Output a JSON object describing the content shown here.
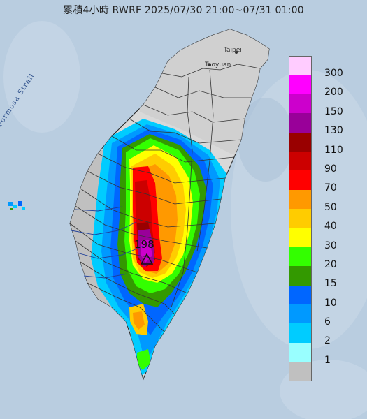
{
  "title": "累積4小時 RWRF 2025/07/30 21:00~07/31 01:00",
  "map_labels": {
    "strait": "Formosa Strait",
    "taipei": "Taipei",
    "taoyuan": "Taoyuan"
  },
  "peak_value": "198",
  "legend": {
    "items": [
      {
        "label": "300",
        "color": "#ffccff"
      },
      {
        "label": "200",
        "color": "#ff00ff"
      },
      {
        "label": "150",
        "color": "#cc00cc"
      },
      {
        "label": "130",
        "color": "#990099"
      },
      {
        "label": "110",
        "color": "#990000"
      },
      {
        "label": "90",
        "color": "#cc0000"
      },
      {
        "label": "70",
        "color": "#ff0000"
      },
      {
        "label": "50",
        "color": "#ff9900"
      },
      {
        "label": "40",
        "color": "#ffcc00"
      },
      {
        "label": "30",
        "color": "#ffff00"
      },
      {
        "label": "20",
        "color": "#33ff00"
      },
      {
        "label": "15",
        "color": "#339900"
      },
      {
        "label": "10",
        "color": "#0066ff"
      },
      {
        "label": "6",
        "color": "#0099ff"
      },
      {
        "label": "2",
        "color": "#00ccff"
      },
      {
        "label": "1",
        "color": "#99ffff"
      },
      {
        "label": "",
        "color": "#c0c0c0"
      }
    ]
  },
  "colors": {
    "sea": "#b9cde0",
    "land": "#d9d9d9",
    "no_rain": "#c0c0c0"
  }
}
